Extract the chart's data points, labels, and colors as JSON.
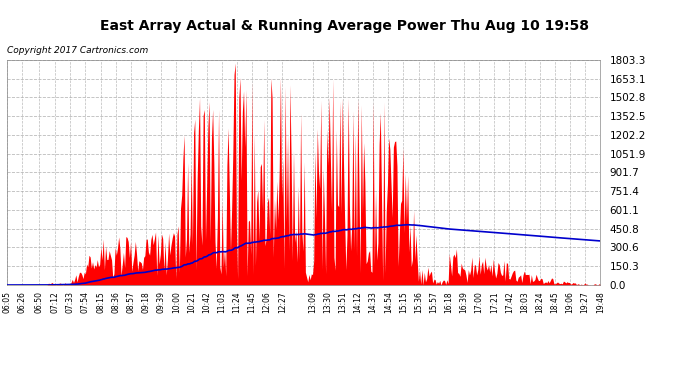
{
  "title": "East Array Actual & Running Average Power Thu Aug 10 19:58",
  "copyright": "Copyright 2017 Cartronics.com",
  "ylabel_right_values": [
    0.0,
    150.3,
    300.6,
    450.8,
    601.1,
    751.4,
    901.7,
    1051.9,
    1202.2,
    1352.5,
    1502.8,
    1653.1,
    1803.3
  ],
  "ymax": 1803.3,
  "ymin": 0.0,
  "plot_bg_color": "#ffffff",
  "fig_bg_color": "#ffffff",
  "bar_color": "#ff0000",
  "avg_color": "#0000cd",
  "grid_color": "#aaaaaa",
  "legend_avg_bg": "#0000cc",
  "legend_east_bg": "#ff0000",
  "legend_text_color": "#ffffff",
  "x_tick_labels": [
    "06:05",
    "06:26",
    "06:50",
    "07:12",
    "07:33",
    "07:54",
    "08:15",
    "08:36",
    "08:57",
    "09:18",
    "09:39",
    "10:00",
    "10:21",
    "10:42",
    "11:03",
    "11:24",
    "11:45",
    "12:06",
    "12:27",
    "13:09",
    "13:30",
    "13:51",
    "14:12",
    "14:33",
    "14:54",
    "15:15",
    "15:36",
    "15:57",
    "16:18",
    "16:39",
    "17:00",
    "17:21",
    "17:42",
    "18:03",
    "18:24",
    "18:45",
    "19:06",
    "19:27",
    "19:48"
  ]
}
